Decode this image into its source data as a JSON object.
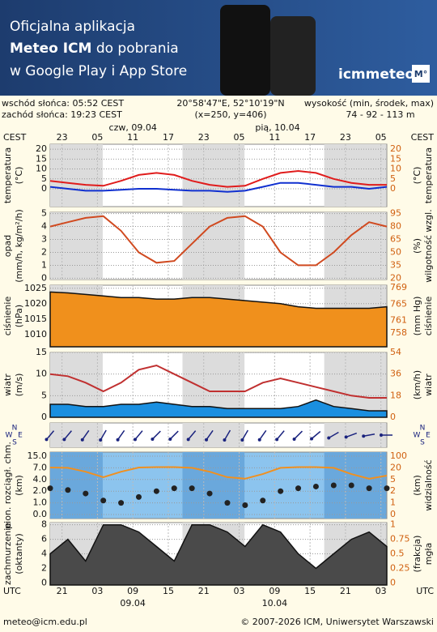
{
  "banner": {
    "line1": "Oficjalna aplikacja",
    "line2_bold": "Meteo ICM",
    "line2_rest": " do pobrania",
    "line3": "w Google Play i App Store",
    "logo": "icmmeteo",
    "logo_box": "M°"
  },
  "info": {
    "sunrise": "wschód słońca: 05:52 CEST",
    "sunset": "zachód słońca: 19:23 CEST",
    "coords": "20°58'47\"E, 52°10'19\"N",
    "grid": "(x=250, y=406)",
    "elev_label": "wysokość (min, środek, max)",
    "elev": "74 - 92 - 113 m"
  },
  "time": {
    "xlim": [
      0,
      57
    ],
    "top_unit": "CEST",
    "top_ticks": [
      {
        "value": 2,
        "label": "23"
      },
      {
        "value": 8,
        "label": "05"
      },
      {
        "value": 14,
        "label": "11"
      },
      {
        "value": 20,
        "label": "17"
      },
      {
        "value": 26,
        "label": "23"
      },
      {
        "value": 32,
        "label": "05"
      },
      {
        "value": 38,
        "label": "11"
      },
      {
        "value": 44,
        "label": "17"
      },
      {
        "value": 50,
        "label": "23"
      },
      {
        "value": 56,
        "label": "05"
      }
    ],
    "top_dates": [
      {
        "value": 14,
        "label": "czw, 09.04"
      },
      {
        "value": 38.5,
        "label": "pią, 10.04"
      }
    ],
    "bottom_unit": "UTC",
    "bottom_ticks": [
      {
        "value": 2,
        "label": "21"
      },
      {
        "value": 8,
        "label": "03"
      },
      {
        "value": 14,
        "label": "09"
      },
      {
        "value": 20,
        "label": "15"
      },
      {
        "value": 26,
        "label": "21"
      },
      {
        "value": 32,
        "label": "03"
      },
      {
        "value": 38,
        "label": "09"
      },
      {
        "value": 44,
        "label": "15"
      },
      {
        "value": 50,
        "label": "21"
      },
      {
        "value": 56,
        "label": "03"
      }
    ],
    "bottom_dates": [
      {
        "value": 14,
        "label": "09.04"
      },
      {
        "value": 38,
        "label": "10.04"
      }
    ]
  },
  "chart_data": [
    {
      "type": "line",
      "ylabel": [
        "temperatura",
        "(°C)"
      ],
      "y2label": [
        "(°C)",
        "temperatura"
      ],
      "ylim": [
        -9,
        22.5
      ],
      "yticks": [
        0,
        5,
        10,
        15,
        20
      ],
      "y2lim": [
        -9,
        22.5
      ],
      "y2ticks": [
        0,
        5,
        10,
        15,
        20
      ],
      "grid": true,
      "x": [
        0,
        3,
        6,
        9,
        12,
        15,
        18,
        21,
        24,
        27,
        30,
        33,
        36,
        39,
        42,
        45,
        48,
        51,
        54,
        57
      ],
      "series": [
        {
          "kind": "line",
          "color": "#e01c1c",
          "values": [
            4,
            3,
            2,
            1.5,
            4,
            7,
            8,
            7,
            4,
            2,
            1,
            1.5,
            5,
            8,
            9,
            8,
            5,
            3,
            2,
            2
          ]
        },
        {
          "kind": "line",
          "color": "#1030d0",
          "values": [
            1,
            0,
            -1,
            -1,
            -0.5,
            0,
            0,
            -0.5,
            -1,
            -1,
            -1.5,
            -1,
            1,
            3,
            3,
            2,
            1,
            1,
            0,
            1
          ]
        }
      ]
    },
    {
      "type": "line",
      "ylabel": [
        "opad",
        "(mm/h, kg/m²/h)"
      ],
      "y2label": [
        "(%)",
        "wilgotność wzgl."
      ],
      "ylim": [
        -0.1,
        5.1
      ],
      "yticks": [
        0,
        1,
        2,
        3,
        4,
        5
      ],
      "y2lim": [
        18.5,
        96.5
      ],
      "y2ticks": [
        20,
        35,
        50,
        65,
        80,
        95
      ],
      "grid": true,
      "x": [
        0,
        3,
        6,
        9,
        12,
        15,
        18,
        21,
        24,
        27,
        30,
        33,
        36,
        39,
        42,
        45,
        48,
        51,
        54,
        57
      ],
      "series": [
        {
          "kind": "line",
          "axis": "y2",
          "color": "#d04a20",
          "values": [
            80,
            85,
            90,
            92,
            75,
            50,
            38,
            40,
            60,
            80,
            90,
            92,
            80,
            50,
            35,
            35,
            50,
            70,
            85,
            80
          ]
        }
      ]
    },
    {
      "type": "area",
      "ylabel": [
        "ciśnienie",
        "(hPa)"
      ],
      "y2label": [
        "(mm Hg)",
        "ciśnienie"
      ],
      "ylim": [
        1006,
        1026
      ],
      "yticks": [
        1010,
        1015,
        1020,
        1025
      ],
      "y2lim": [
        754.6,
        769.6
      ],
      "y2ticks": [
        758,
        761,
        765,
        769
      ],
      "grid": true,
      "x": [
        0,
        3,
        6,
        9,
        12,
        15,
        18,
        21,
        24,
        27,
        30,
        33,
        36,
        39,
        42,
        45,
        48,
        51,
        54,
        57
      ],
      "series": [
        {
          "kind": "area",
          "color": "#f0901c",
          "values": [
            1023.8,
            1023.5,
            1023,
            1022.5,
            1022,
            1022,
            1021.5,
            1021.5,
            1022,
            1022,
            1021.5,
            1021,
            1020.5,
            1020,
            1019,
            1018.5,
            1018.5,
            1018.5,
            1018.5,
            1019
          ]
        }
      ]
    },
    {
      "type": "line",
      "ylabel": [
        "wiatr",
        "(m/s)"
      ],
      "y2label": [
        "(km/h)",
        "wiatr"
      ],
      "ylim": [
        0,
        15
      ],
      "yticks": [
        0,
        5,
        10,
        15
      ],
      "y2lim": [
        0,
        54
      ],
      "y2ticks": [
        0,
        18,
        36,
        54
      ],
      "grid": true,
      "x": [
        0,
        3,
        6,
        9,
        12,
        15,
        18,
        21,
        24,
        27,
        30,
        33,
        36,
        39,
        42,
        45,
        48,
        51,
        54,
        57
      ],
      "series": [
        {
          "kind": "area",
          "color": "#1a8fe0",
          "values": [
            3,
            3,
            2.5,
            2.5,
            3,
            3,
            3.5,
            3,
            2.5,
            2.5,
            2,
            2,
            2,
            2,
            2.5,
            4,
            2.5,
            2,
            1.5,
            1.5
          ]
        },
        {
          "kind": "line",
          "color": "#c03030",
          "values": [
            10,
            9.5,
            8,
            6,
            8,
            11,
            12,
            10,
            8,
            6,
            6,
            6,
            8,
            9,
            8,
            7,
            6,
            5,
            4.5,
            4.5
          ]
        }
      ]
    },
    {
      "type": "arrows",
      "compass": [
        "N",
        "E",
        "S",
        "W"
      ],
      "x": [
        0,
        3,
        6,
        9,
        12,
        15,
        18,
        21,
        24,
        27,
        30,
        33,
        36,
        39,
        42,
        45,
        48,
        51,
        54,
        57
      ],
      "values": [
        40,
        40,
        35,
        30,
        35,
        40,
        45,
        45,
        40,
        35,
        30,
        30,
        35,
        40,
        45,
        50,
        60,
        70,
        80,
        90
      ]
    },
    {
      "type": "line",
      "scale": "ticks",
      "ylabel": [
        "pion. rozciągł. chm.",
        "(km)"
      ],
      "y2label": [
        "(km)",
        "widzialność"
      ],
      "yticks": [
        {
          "value": 0,
          "label": "0.0"
        },
        {
          "value": 1,
          "label": "1.0"
        },
        {
          "value": 2,
          "label": "2.0"
        },
        {
          "value": 4,
          "label": "4.0"
        },
        {
          "value": 7,
          "label": "7.0"
        },
        {
          "value": 15,
          "label": "15.0"
        }
      ],
      "y2ticks": [
        0,
        1,
        2,
        5,
        20,
        100
      ],
      "grid": true,
      "x": [
        0,
        3,
        6,
        9,
        12,
        15,
        18,
        21,
        24,
        27,
        30,
        33,
        36,
        39,
        42,
        45,
        48,
        51,
        54,
        57
      ],
      "series": [
        {
          "kind": "line",
          "axis": "y2",
          "color": "#f09020",
          "values": [
            22,
            20,
            15,
            8,
            15,
            22,
            25,
            25,
            20,
            15,
            8,
            6,
            12,
            20,
            25,
            25,
            20,
            12,
            6,
            10
          ]
        },
        {
          "kind": "dots",
          "color": "#222222",
          "values": [
            2.5,
            2.2,
            1.8,
            1.2,
            1,
            1.5,
            2,
            2.5,
            2.5,
            1.8,
            1,
            0.8,
            1.2,
            2,
            2.5,
            2.8,
            3,
            3,
            2.5,
            2.5
          ]
        }
      ]
    },
    {
      "type": "area",
      "ylabel": [
        "zachmurzenie",
        "(oktanty)"
      ],
      "y2label": [
        "(frakcja)",
        "mgła"
      ],
      "ylim": [
        -0.3,
        8.3
      ],
      "yticks": [
        0,
        2,
        4,
        6,
        8
      ],
      "y2lim": [
        -0.0375,
        1.0375
      ],
      "y2ticks": [
        0,
        0.25,
        0.5,
        0.75,
        1
      ],
      "grid": true,
      "x": [
        0,
        3,
        6,
        9,
        12,
        15,
        18,
        21,
        24,
        27,
        30,
        33,
        36,
        39,
        42,
        45,
        48,
        51,
        54,
        57
      ],
      "series": [
        {
          "kind": "area",
          "color": "#4a4a4a",
          "values": [
            4,
            6,
            3,
            8,
            8,
            7,
            5,
            3,
            8,
            8,
            7,
            5,
            8,
            7,
            4,
            2,
            4,
            6,
            7,
            5
          ]
        }
      ]
    }
  ],
  "footer": {
    "email": "meteo@icm.edu.pl",
    "copyright": "© 2007-2026 ICM, Uniwersytet Warszawski"
  }
}
